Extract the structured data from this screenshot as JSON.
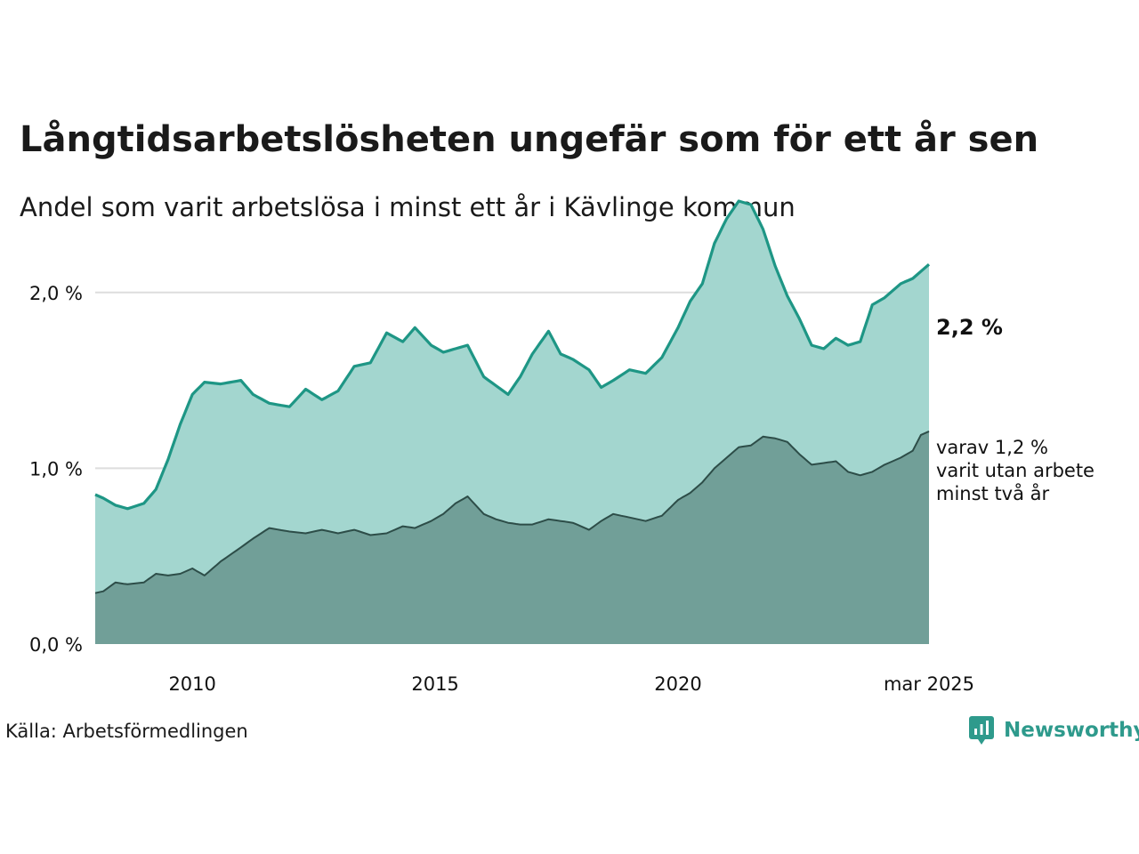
{
  "title": "Långtidsarbetslösheten ungefär som för ett år sen",
  "subtitle": "Andel som varit arbetslösa i minst ett år i Kävlinge kommun",
  "source": "Källa: Arbetsförmedlingen",
  "brand": "Newsworthy",
  "end_label_total": "2,2 %",
  "end_label_sub": [
    "varav 1,2 %",
    "varit utan arbete",
    "minst två år"
  ],
  "colors": {
    "total_line": "#1e9685",
    "total_fill": "#a3d6cf",
    "sub_line": "#2d4d48",
    "sub_fill": "#719f98",
    "grid": "#dddddd"
  },
  "chart_data": {
    "type": "area",
    "x_start": "2008-01",
    "x_end": "2025-03",
    "x_step": "month",
    "ylim": [
      0,
      2.5
    ],
    "yticks": [
      0,
      1.0,
      2.0
    ],
    "ytick_labels": [
      "0,0 %",
      "1,0 %",
      "2,0 %"
    ],
    "xticks": [
      "2010-01",
      "2015-01",
      "2020-01",
      "2025-03"
    ],
    "xtick_labels": [
      "2010",
      "2015",
      "2020",
      "mar 2025"
    ],
    "grid": true,
    "series": [
      {
        "key": "total",
        "knots": [
          [
            "2008-01",
            0.85
          ],
          [
            "2008-03",
            0.83
          ],
          [
            "2008-06",
            0.79
          ],
          [
            "2008-09",
            0.77
          ],
          [
            "2009-01",
            0.8
          ],
          [
            "2009-04",
            0.88
          ],
          [
            "2009-07",
            1.05
          ],
          [
            "2009-10",
            1.25
          ],
          [
            "2010-01",
            1.42
          ],
          [
            "2010-04",
            1.49
          ],
          [
            "2010-08",
            1.48
          ],
          [
            "2011-01",
            1.5
          ],
          [
            "2011-04",
            1.42
          ],
          [
            "2011-08",
            1.37
          ],
          [
            "2012-01",
            1.35
          ],
          [
            "2012-05",
            1.45
          ],
          [
            "2012-09",
            1.39
          ],
          [
            "2013-01",
            1.44
          ],
          [
            "2013-05",
            1.58
          ],
          [
            "2013-09",
            1.6
          ],
          [
            "2014-01",
            1.77
          ],
          [
            "2014-05",
            1.72
          ],
          [
            "2014-08",
            1.8
          ],
          [
            "2014-12",
            1.7
          ],
          [
            "2015-03",
            1.66
          ],
          [
            "2015-06",
            1.68
          ],
          [
            "2015-09",
            1.7
          ],
          [
            "2016-01",
            1.52
          ],
          [
            "2016-04",
            1.47
          ],
          [
            "2016-07",
            1.42
          ],
          [
            "2016-10",
            1.52
          ],
          [
            "2017-01",
            1.65
          ],
          [
            "2017-05",
            1.78
          ],
          [
            "2017-08",
            1.65
          ],
          [
            "2017-11",
            1.62
          ],
          [
            "2018-03",
            1.56
          ],
          [
            "2018-06",
            1.46
          ],
          [
            "2018-09",
            1.5
          ],
          [
            "2019-01",
            1.56
          ],
          [
            "2019-05",
            1.54
          ],
          [
            "2019-09",
            1.63
          ],
          [
            "2020-01",
            1.8
          ],
          [
            "2020-04",
            1.95
          ],
          [
            "2020-07",
            2.05
          ],
          [
            "2020-10",
            2.28
          ],
          [
            "2021-01",
            2.42
          ],
          [
            "2021-04",
            2.52
          ],
          [
            "2021-07",
            2.5
          ],
          [
            "2021-10",
            2.36
          ],
          [
            "2022-01",
            2.15
          ],
          [
            "2022-04",
            1.98
          ],
          [
            "2022-07",
            1.85
          ],
          [
            "2022-10",
            1.7
          ],
          [
            "2023-01",
            1.68
          ],
          [
            "2023-04",
            1.74
          ],
          [
            "2023-07",
            1.7
          ],
          [
            "2023-10",
            1.72
          ],
          [
            "2024-01",
            1.93
          ],
          [
            "2024-04",
            1.97
          ],
          [
            "2024-08",
            2.05
          ],
          [
            "2024-11",
            2.08
          ],
          [
            "2025-01",
            2.12
          ],
          [
            "2025-03",
            2.16
          ]
        ]
      },
      {
        "key": "at_least_two_years",
        "knots": [
          [
            "2008-01",
            0.29
          ],
          [
            "2008-03",
            0.3
          ],
          [
            "2008-06",
            0.35
          ],
          [
            "2008-09",
            0.34
          ],
          [
            "2009-01",
            0.35
          ],
          [
            "2009-04",
            0.4
          ],
          [
            "2009-07",
            0.39
          ],
          [
            "2009-10",
            0.4
          ],
          [
            "2010-01",
            0.43
          ],
          [
            "2010-04",
            0.39
          ],
          [
            "2010-08",
            0.47
          ],
          [
            "2011-01",
            0.55
          ],
          [
            "2011-04",
            0.6
          ],
          [
            "2011-08",
            0.66
          ],
          [
            "2012-01",
            0.64
          ],
          [
            "2012-05",
            0.63
          ],
          [
            "2012-09",
            0.65
          ],
          [
            "2013-01",
            0.63
          ],
          [
            "2013-05",
            0.65
          ],
          [
            "2013-09",
            0.62
          ],
          [
            "2014-01",
            0.63
          ],
          [
            "2014-05",
            0.67
          ],
          [
            "2014-08",
            0.66
          ],
          [
            "2014-12",
            0.7
          ],
          [
            "2015-03",
            0.74
          ],
          [
            "2015-06",
            0.8
          ],
          [
            "2015-09",
            0.84
          ],
          [
            "2016-01",
            0.74
          ],
          [
            "2016-04",
            0.71
          ],
          [
            "2016-07",
            0.69
          ],
          [
            "2016-10",
            0.68
          ],
          [
            "2017-01",
            0.68
          ],
          [
            "2017-05",
            0.71
          ],
          [
            "2017-08",
            0.7
          ],
          [
            "2017-11",
            0.69
          ],
          [
            "2018-03",
            0.65
          ],
          [
            "2018-06",
            0.7
          ],
          [
            "2018-09",
            0.74
          ],
          [
            "2019-01",
            0.72
          ],
          [
            "2019-05",
            0.7
          ],
          [
            "2019-09",
            0.73
          ],
          [
            "2020-01",
            0.82
          ],
          [
            "2020-04",
            0.86
          ],
          [
            "2020-07",
            0.92
          ],
          [
            "2020-10",
            1.0
          ],
          [
            "2021-01",
            1.06
          ],
          [
            "2021-04",
            1.12
          ],
          [
            "2021-07",
            1.13
          ],
          [
            "2021-10",
            1.18
          ],
          [
            "2022-01",
            1.17
          ],
          [
            "2022-04",
            1.15
          ],
          [
            "2022-07",
            1.08
          ],
          [
            "2022-10",
            1.02
          ],
          [
            "2023-01",
            1.03
          ],
          [
            "2023-04",
            1.04
          ],
          [
            "2023-07",
            0.98
          ],
          [
            "2023-10",
            0.96
          ],
          [
            "2024-01",
            0.98
          ],
          [
            "2024-04",
            1.02
          ],
          [
            "2024-08",
            1.06
          ],
          [
            "2024-11",
            1.1
          ],
          [
            "2025-01",
            1.19
          ],
          [
            "2025-03",
            1.21
          ]
        ]
      }
    ]
  }
}
